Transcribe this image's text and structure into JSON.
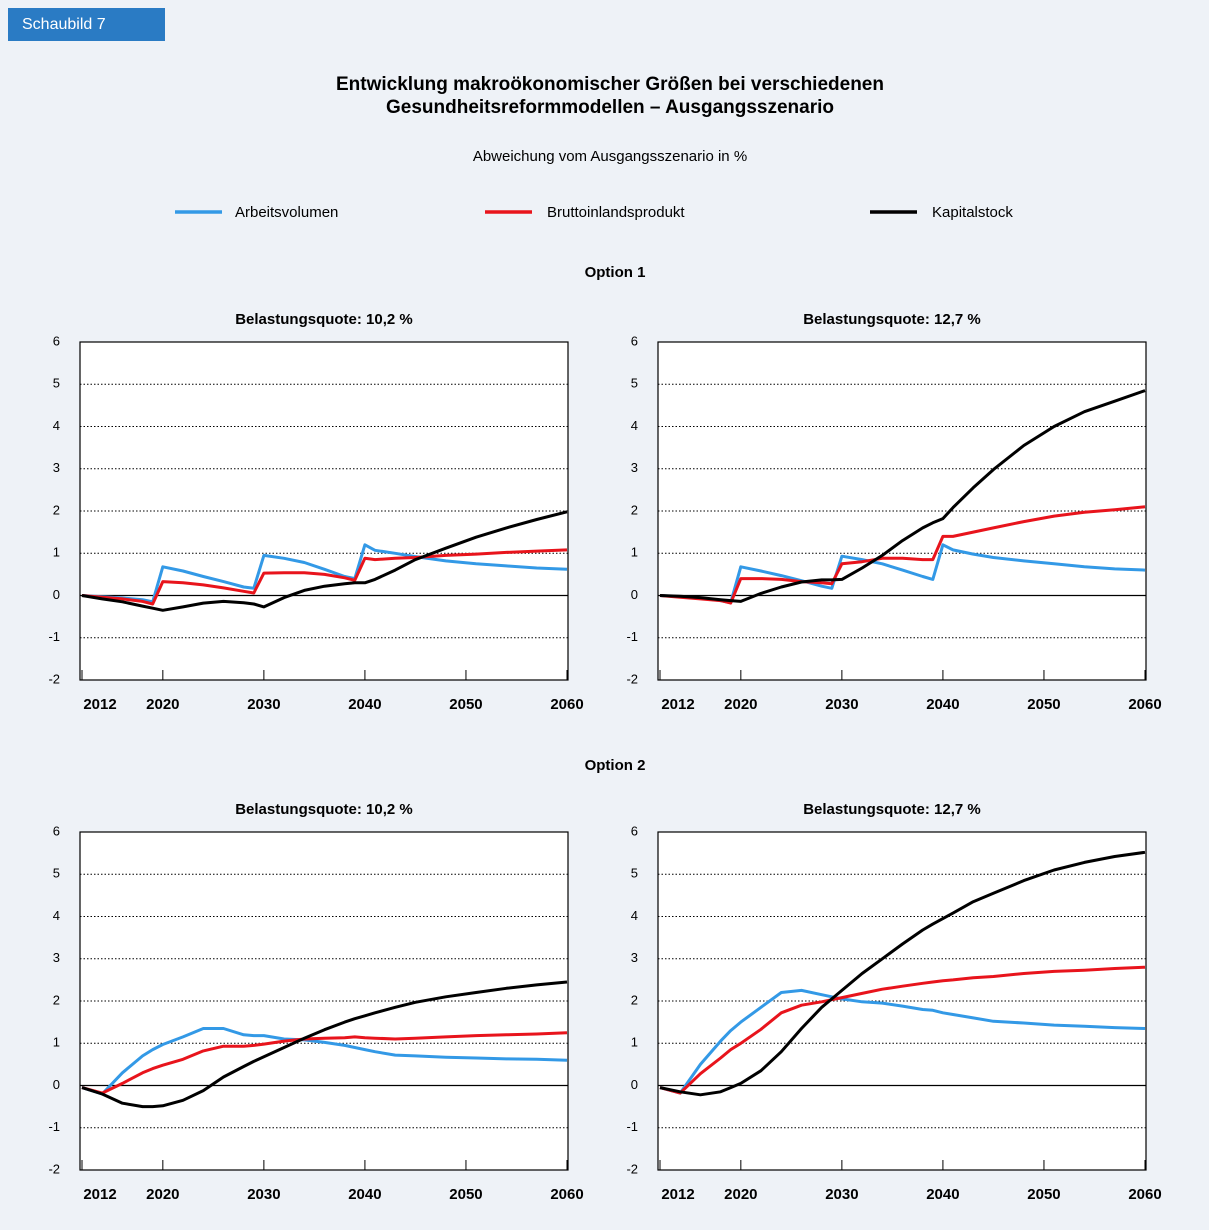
{
  "header": {
    "badge": "Schaubild 7",
    "title": [
      "Entwicklung makroökonomischer Größen bei verschiedenen",
      "Gesundheitsreformmodellen – Ausgangsszenario"
    ],
    "subtitle": "Abweichung vom Ausgangsszenario in %"
  },
  "sections": [
    "Option 1",
    "Option 2"
  ],
  "chart_data": [
    {
      "type": "line",
      "title": "Belastungsquote: 10,2 %",
      "grid": true,
      "x": [
        2012,
        2014,
        2016,
        2018,
        2019,
        2020,
        2022,
        2024,
        2026,
        2028,
        2029,
        2030,
        2032,
        2034,
        2036,
        2038,
        2039,
        2040,
        2041,
        2043,
        2045,
        2048,
        2051,
        2054,
        2057,
        2060
      ],
      "xlim": [
        2012,
        2060
      ],
      "xticks": [
        2012,
        2020,
        2030,
        2040,
        2050,
        2060
      ],
      "ylim": [
        -2,
        6
      ],
      "yticks": [
        -2,
        -1,
        0,
        1,
        2,
        3,
        4,
        5,
        6
      ],
      "series": [
        {
          "name": "Arbeitsvolumen",
          "color": "#3399e6",
          "values": [
            0,
            -0.03,
            -0.06,
            -0.1,
            -0.15,
            0.68,
            0.58,
            0.45,
            0.33,
            0.2,
            0.17,
            0.95,
            0.88,
            0.78,
            0.62,
            0.45,
            0.4,
            1.2,
            1.07,
            1.0,
            0.92,
            0.82,
            0.75,
            0.7,
            0.65,
            0.62
          ]
        },
        {
          "name": "Bruttoinlandsprodukt",
          "color": "#e8141c",
          "values": [
            0,
            -0.04,
            -0.08,
            -0.14,
            -0.2,
            0.33,
            0.3,
            0.25,
            0.18,
            0.1,
            0.06,
            0.53,
            0.54,
            0.54,
            0.5,
            0.42,
            0.36,
            0.88,
            0.85,
            0.88,
            0.9,
            0.95,
            0.98,
            1.02,
            1.05,
            1.08
          ]
        },
        {
          "name": "Kapitalstock",
          "color": "#000000",
          "values": [
            0,
            -0.08,
            -0.15,
            -0.25,
            -0.3,
            -0.35,
            -0.27,
            -0.18,
            -0.14,
            -0.17,
            -0.2,
            -0.27,
            -0.05,
            0.12,
            0.22,
            0.28,
            0.3,
            0.3,
            0.38,
            0.6,
            0.85,
            1.12,
            1.38,
            1.6,
            1.8,
            1.98
          ]
        }
      ]
    },
    {
      "type": "line",
      "title": "Belastungsquote: 12,7 %",
      "grid": true,
      "x": [
        2012,
        2014,
        2016,
        2018,
        2019,
        2020,
        2022,
        2024,
        2026,
        2028,
        2029,
        2030,
        2032,
        2034,
        2036,
        2038,
        2039,
        2040,
        2041,
        2043,
        2045,
        2048,
        2051,
        2054,
        2057,
        2060
      ],
      "xlim": [
        2012,
        2060
      ],
      "xticks": [
        2012,
        2020,
        2030,
        2040,
        2050,
        2060
      ],
      "ylim": [
        -2,
        6
      ],
      "yticks": [
        -2,
        -1,
        0,
        1,
        2,
        3,
        4,
        5,
        6
      ],
      "series": [
        {
          "name": "Arbeitsvolumen",
          "color": "#3399e6",
          "values": [
            0,
            -0.03,
            -0.06,
            -0.12,
            -0.17,
            0.68,
            0.58,
            0.47,
            0.35,
            0.22,
            0.17,
            0.93,
            0.85,
            0.75,
            0.6,
            0.45,
            0.38,
            1.2,
            1.08,
            0.98,
            0.9,
            0.82,
            0.75,
            0.68,
            0.63,
            0.6
          ]
        },
        {
          "name": "Bruttoinlandsprodukt",
          "color": "#e8141c",
          "values": [
            0,
            -0.04,
            -0.08,
            -0.12,
            -0.18,
            0.4,
            0.4,
            0.38,
            0.33,
            0.3,
            0.28,
            0.75,
            0.8,
            0.88,
            0.88,
            0.85,
            0.85,
            1.4,
            1.4,
            1.5,
            1.6,
            1.75,
            1.88,
            1.97,
            2.03,
            2.1
          ]
        },
        {
          "name": "Kapitalstock",
          "color": "#000000",
          "values": [
            0,
            -0.02,
            -0.05,
            -0.1,
            -0.12,
            -0.14,
            0.05,
            0.2,
            0.32,
            0.37,
            0.37,
            0.38,
            0.65,
            0.95,
            1.3,
            1.6,
            1.72,
            1.82,
            2.08,
            2.55,
            2.98,
            3.55,
            4.0,
            4.35,
            4.6,
            4.85
          ]
        }
      ]
    },
    {
      "type": "line",
      "title": "Belastungsquote: 10,2 %",
      "grid": true,
      "x": [
        2012,
        2014,
        2016,
        2018,
        2019,
        2020,
        2022,
        2024,
        2026,
        2028,
        2029,
        2030,
        2032,
        2034,
        2036,
        2038,
        2039,
        2040,
        2041,
        2043,
        2045,
        2048,
        2051,
        2054,
        2057,
        2060
      ],
      "xlim": [
        2012,
        2060
      ],
      "xticks": [
        2012,
        2020,
        2030,
        2040,
        2050,
        2060
      ],
      "ylim": [
        -2,
        6
      ],
      "yticks": [
        -2,
        -1,
        0,
        1,
        2,
        3,
        4,
        5,
        6
      ],
      "series": [
        {
          "name": "Arbeitsvolumen",
          "color": "#3399e6",
          "values": [
            -0.05,
            -0.2,
            0.3,
            0.7,
            0.85,
            0.97,
            1.15,
            1.35,
            1.35,
            1.2,
            1.18,
            1.18,
            1.1,
            1.08,
            1.02,
            0.95,
            0.9,
            0.85,
            0.8,
            0.72,
            0.7,
            0.67,
            0.65,
            0.63,
            0.62,
            0.6
          ]
        },
        {
          "name": "Bruttoinlandsprodukt",
          "color": "#e8141c",
          "values": [
            -0.05,
            -0.18,
            0.05,
            0.3,
            0.4,
            0.48,
            0.62,
            0.82,
            0.93,
            0.93,
            0.95,
            0.98,
            1.05,
            1.1,
            1.12,
            1.13,
            1.15,
            1.13,
            1.12,
            1.1,
            1.12,
            1.15,
            1.18,
            1.2,
            1.22,
            1.25
          ]
        },
        {
          "name": "Kapitalstock",
          "color": "#000000",
          "values": [
            -0.05,
            -0.2,
            -0.42,
            -0.5,
            -0.5,
            -0.48,
            -0.35,
            -0.12,
            0.2,
            0.45,
            0.57,
            0.68,
            0.9,
            1.12,
            1.32,
            1.5,
            1.58,
            1.65,
            1.72,
            1.85,
            1.97,
            2.1,
            2.2,
            2.3,
            2.38,
            2.45
          ]
        }
      ]
    },
    {
      "type": "line",
      "title": "Belastungsquote: 12,7 %",
      "grid": true,
      "x": [
        2012,
        2014,
        2016,
        2018,
        2019,
        2020,
        2022,
        2024,
        2026,
        2028,
        2029,
        2030,
        2032,
        2034,
        2036,
        2038,
        2039,
        2040,
        2041,
        2043,
        2045,
        2048,
        2051,
        2054,
        2057,
        2060
      ],
      "xlim": [
        2012,
        2060
      ],
      "xticks": [
        2012,
        2020,
        2030,
        2040,
        2050,
        2060
      ],
      "ylim": [
        -2,
        6
      ],
      "yticks": [
        -2,
        -1,
        0,
        1,
        2,
        3,
        4,
        5,
        6
      ],
      "series": [
        {
          "name": "Arbeitsvolumen",
          "color": "#3399e6",
          "values": [
            -0.05,
            -0.18,
            0.5,
            1.05,
            1.3,
            1.5,
            1.85,
            2.2,
            2.25,
            2.15,
            2.1,
            2.05,
            1.98,
            1.95,
            1.88,
            1.8,
            1.78,
            1.72,
            1.68,
            1.6,
            1.52,
            1.48,
            1.43,
            1.4,
            1.37,
            1.35
          ]
        },
        {
          "name": "Bruttoinlandsprodukt",
          "color": "#e8141c",
          "values": [
            -0.05,
            -0.18,
            0.28,
            0.65,
            0.85,
            1.0,
            1.33,
            1.72,
            1.9,
            1.98,
            2.03,
            2.08,
            2.18,
            2.28,
            2.35,
            2.42,
            2.45,
            2.48,
            2.5,
            2.55,
            2.58,
            2.65,
            2.7,
            2.73,
            2.77,
            2.8
          ]
        },
        {
          "name": "Kapitalstock",
          "color": "#000000",
          "values": [
            -0.05,
            -0.15,
            -0.22,
            -0.15,
            -0.05,
            0.05,
            0.35,
            0.8,
            1.35,
            1.85,
            2.05,
            2.25,
            2.65,
            3.0,
            3.35,
            3.68,
            3.82,
            3.95,
            4.08,
            4.35,
            4.55,
            4.85,
            5.1,
            5.28,
            5.42,
            5.52
          ]
        }
      ]
    }
  ]
}
